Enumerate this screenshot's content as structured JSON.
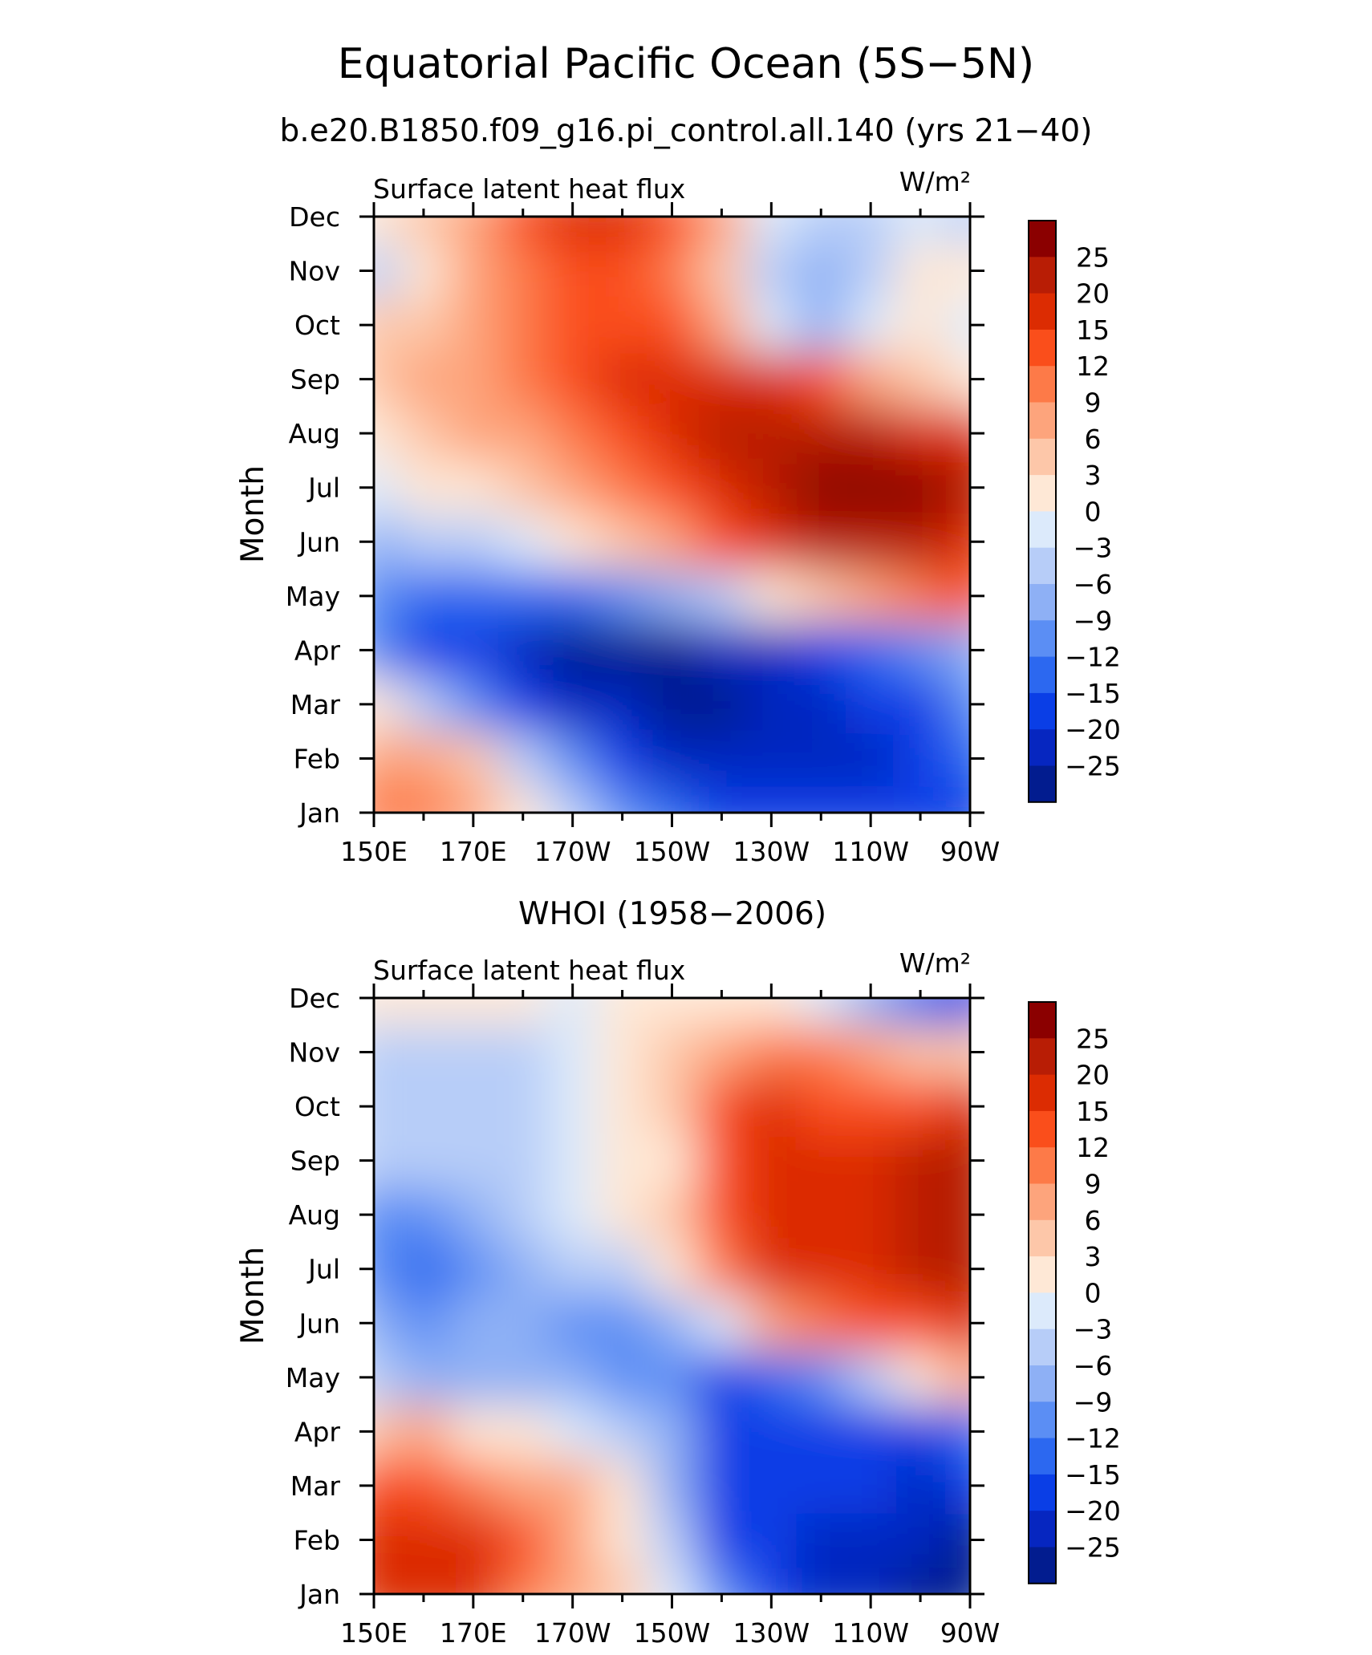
{
  "header": {
    "title": "Equatorial Pacific Ocean (5S−5N)",
    "subtitle": "b.e20.B1850.f09_g16.pi_control.all.140 (yrs 21−40)"
  },
  "colorbar": {
    "labels": [
      "25",
      "20",
      "15",
      "12",
      "9",
      "6",
      "3",
      "0",
      "−3",
      "−6",
      "−9",
      "−12",
      "−15",
      "−20",
      "−25"
    ],
    "colors": [
      "#8b0000",
      "#b81d05",
      "#dc2c02",
      "#fa4e1b",
      "#fd7a48",
      "#fda47c",
      "#fdc7a9",
      "#fee8d6",
      "#dceafb",
      "#b7cdf8",
      "#8eb0f5",
      "#5b8ef4",
      "#2c68f0",
      "#0a3ee6",
      "#0626c0",
      "#021c8f"
    ]
  },
  "chart_data": [
    {
      "type": "heatmap",
      "panel_title": "",
      "top_left_label": "Surface latent heat flux",
      "units": "W/m²",
      "ylabel": "Month",
      "x_ticks": [
        "150E",
        "170E",
        "170W",
        "150W",
        "130W",
        "110W",
        "90W"
      ],
      "y_ticks": [
        "Jan",
        "Feb",
        "Mar",
        "Apr",
        "May",
        "Jun",
        "Jul",
        "Aug",
        "Sep",
        "Oct",
        "Nov",
        "Dec"
      ],
      "x_lon": [
        150,
        160,
        170,
        180,
        190,
        200,
        210,
        220,
        230,
        240,
        250,
        260,
        270
      ],
      "levels": [
        -25,
        -20,
        -15,
        -12,
        -9,
        -6,
        -3,
        0,
        3,
        6,
        9,
        12,
        15,
        20,
        25
      ],
      "values": [
        [
          10,
          9,
          6,
          0,
          -6,
          -11,
          -14,
          -16,
          -18,
          -19,
          -19,
          -18,
          -16
        ],
        [
          8,
          8,
          3,
          -5,
          -12,
          -18,
          -21,
          -23,
          -23,
          -22,
          -22,
          -20,
          -14
        ],
        [
          2,
          -5,
          -11,
          -17,
          -21,
          -25,
          -27,
          -27,
          -25,
          -22,
          -20,
          -17,
          -10
        ],
        [
          -12,
          -16,
          -19,
          -22,
          -26,
          -27,
          -26,
          -24,
          -22,
          -18,
          -15,
          -12,
          -8
        ],
        [
          -12,
          -13,
          -14,
          -14,
          -13,
          -11,
          -8,
          -4,
          0,
          3,
          6,
          9,
          12
        ],
        [
          -8,
          -6,
          -4,
          -2,
          0,
          3,
          8,
          13,
          18,
          23,
          24,
          22,
          19
        ],
        [
          -2,
          0,
          2,
          4,
          7,
          10,
          14,
          19,
          24,
          27,
          27,
          25,
          22
        ],
        [
          2,
          4,
          6,
          8,
          11,
          14,
          17,
          20,
          21,
          21,
          20,
          18,
          16
        ],
        [
          5,
          6,
          8,
          10,
          12,
          15,
          16,
          16,
          15,
          12,
          8,
          5,
          0
        ],
        [
          3,
          5,
          8,
          11,
          13,
          14,
          12,
          6,
          -2,
          -7,
          -3,
          1,
          -3
        ],
        [
          -4,
          1,
          7,
          11,
          14,
          14,
          11,
          3,
          -4,
          -9,
          -5,
          2,
          2
        ],
        [
          2,
          5,
          8,
          12,
          16,
          18,
          14,
          6,
          -3,
          -6,
          -5,
          -3,
          -6
        ]
      ]
    },
    {
      "type": "heatmap",
      "panel_title": "WHOI (1958−2006)",
      "top_left_label": "Surface latent heat flux",
      "units": "W/m²",
      "ylabel": "Month",
      "x_ticks": [
        "150E",
        "170E",
        "170W",
        "150W",
        "130W",
        "110W",
        "90W"
      ],
      "y_ticks": [
        "Jan",
        "Feb",
        "Mar",
        "Apr",
        "May",
        "Jun",
        "Jul",
        "Aug",
        "Sep",
        "Oct",
        "Nov",
        "Dec"
      ],
      "x_lon": [
        150,
        160,
        170,
        180,
        190,
        200,
        210,
        220,
        230,
        240,
        250,
        260,
        270
      ],
      "levels": [
        -25,
        -20,
        -15,
        -12,
        -9,
        -6,
        -3,
        0,
        3,
        6,
        9,
        12,
        15,
        20,
        25
      ],
      "values": [
        [
          15,
          16,
          16,
          10,
          6,
          3,
          -3,
          -12,
          -18,
          -22,
          -24,
          -26,
          -28
        ],
        [
          16,
          18,
          18,
          12,
          8,
          2,
          -6,
          -16,
          -20,
          -22,
          -24,
          -24,
          -26
        ],
        [
          12,
          12,
          10,
          8,
          6,
          0,
          -8,
          -18,
          -20,
          -18,
          -20,
          -22,
          -20
        ],
        [
          5,
          6,
          2,
          0,
          -2,
          -4,
          -9,
          -16,
          -18,
          -16,
          -19,
          -20,
          -14
        ],
        [
          -6,
          -8,
          -8,
          -8,
          -9,
          -10,
          -12,
          -16,
          -15,
          -10,
          -6,
          0,
          6
        ],
        [
          -9,
          -11,
          -9,
          -8,
          -10,
          -11,
          -9,
          -2,
          6,
          10,
          12,
          14,
          16
        ],
        [
          -12,
          -13,
          -10,
          -8,
          -6,
          -4,
          1,
          9,
          16,
          18,
          18,
          20,
          22
        ],
        [
          -11,
          -12,
          -8,
          -4,
          -2,
          0,
          3,
          12,
          18,
          16,
          17,
          21,
          24
        ],
        [
          -6,
          -6,
          -5,
          -4,
          -2,
          0,
          2,
          14,
          16,
          16,
          16,
          20,
          22
        ],
        [
          -5,
          -4,
          -6,
          -4,
          -2,
          2,
          4,
          13,
          15,
          14,
          12,
          14,
          15
        ],
        [
          -4,
          -5,
          -5,
          -4,
          -2,
          2,
          4,
          6,
          9,
          10,
          6,
          3,
          3
        ],
        [
          1,
          2,
          1,
          2,
          -1,
          1,
          2,
          1,
          0,
          -3,
          -8,
          -14,
          -20
        ]
      ]
    }
  ]
}
